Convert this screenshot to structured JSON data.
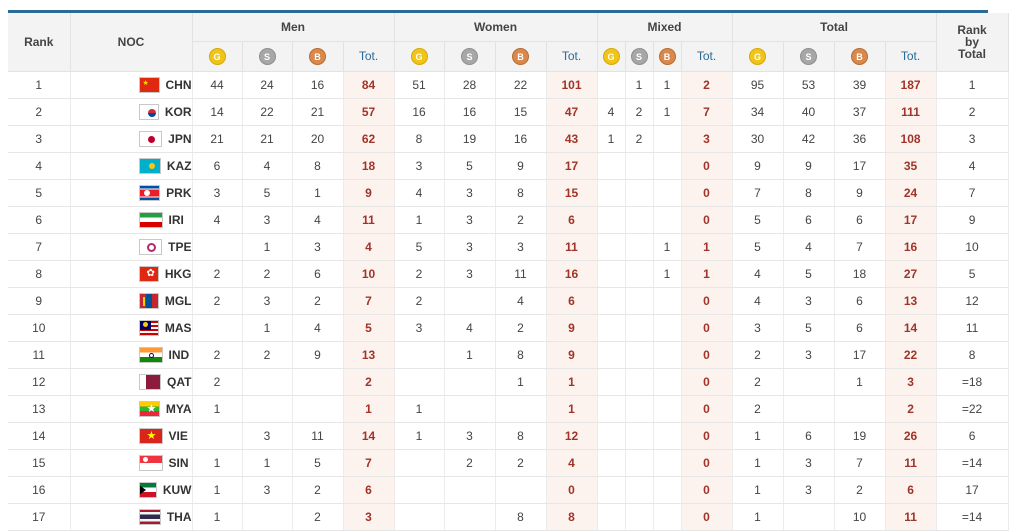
{
  "headers": {
    "rank": "Rank",
    "noc": "NOC",
    "men": "Men",
    "women": "Women",
    "mixed": "Mixed",
    "total": "Total",
    "rank_by_total": [
      "Rank",
      "by",
      "Total"
    ],
    "tot": "Tot.",
    "medal_gold": "G",
    "medal_silver": "S",
    "medal_bronze": "B"
  },
  "rows": [
    {
      "rank": "1",
      "noc": "CHN",
      "flag": "chn",
      "men": [
        "44",
        "24",
        "16",
        "84"
      ],
      "women": [
        "51",
        "28",
        "22",
        "101"
      ],
      "mixed": [
        "",
        "1",
        "1",
        "2"
      ],
      "total": [
        "95",
        "53",
        "39",
        "187"
      ],
      "rbt": "1"
    },
    {
      "rank": "2",
      "noc": "KOR",
      "flag": "kor",
      "men": [
        "14",
        "22",
        "21",
        "57"
      ],
      "women": [
        "16",
        "16",
        "15",
        "47"
      ],
      "mixed": [
        "4",
        "2",
        "1",
        "7"
      ],
      "total": [
        "34",
        "40",
        "37",
        "111"
      ],
      "rbt": "2"
    },
    {
      "rank": "3",
      "noc": "JPN",
      "flag": "jpn",
      "men": [
        "21",
        "21",
        "20",
        "62"
      ],
      "women": [
        "8",
        "19",
        "16",
        "43"
      ],
      "mixed": [
        "1",
        "2",
        "",
        "3"
      ],
      "total": [
        "30",
        "42",
        "36",
        "108"
      ],
      "rbt": "3"
    },
    {
      "rank": "4",
      "noc": "KAZ",
      "flag": "kaz",
      "men": [
        "6",
        "4",
        "8",
        "18"
      ],
      "women": [
        "3",
        "5",
        "9",
        "17"
      ],
      "mixed": [
        "",
        "",
        "",
        "0"
      ],
      "total": [
        "9",
        "9",
        "17",
        "35"
      ],
      "rbt": "4"
    },
    {
      "rank": "5",
      "noc": "PRK",
      "flag": "prk",
      "men": [
        "3",
        "5",
        "1",
        "9"
      ],
      "women": [
        "4",
        "3",
        "8",
        "15"
      ],
      "mixed": [
        "",
        "",
        "",
        "0"
      ],
      "total": [
        "7",
        "8",
        "9",
        "24"
      ],
      "rbt": "7"
    },
    {
      "rank": "6",
      "noc": "IRI",
      "flag": "iri",
      "men": [
        "4",
        "3",
        "4",
        "11"
      ],
      "women": [
        "1",
        "3",
        "2",
        "6"
      ],
      "mixed": [
        "",
        "",
        "",
        "0"
      ],
      "total": [
        "5",
        "6",
        "6",
        "17"
      ],
      "rbt": "9"
    },
    {
      "rank": "7",
      "noc": "TPE",
      "flag": "tpe",
      "men": [
        "",
        "1",
        "3",
        "4"
      ],
      "women": [
        "5",
        "3",
        "3",
        "11"
      ],
      "mixed": [
        "",
        "",
        "1",
        "1"
      ],
      "total": [
        "5",
        "4",
        "7",
        "16"
      ],
      "rbt": "10"
    },
    {
      "rank": "8",
      "noc": "HKG",
      "flag": "hkg",
      "men": [
        "2",
        "2",
        "6",
        "10"
      ],
      "women": [
        "2",
        "3",
        "11",
        "16"
      ],
      "mixed": [
        "",
        "",
        "1",
        "1"
      ],
      "total": [
        "4",
        "5",
        "18",
        "27"
      ],
      "rbt": "5"
    },
    {
      "rank": "9",
      "noc": "MGL",
      "flag": "mgl",
      "men": [
        "2",
        "3",
        "2",
        "7"
      ],
      "women": [
        "2",
        "",
        "4",
        "6"
      ],
      "mixed": [
        "",
        "",
        "",
        "0"
      ],
      "total": [
        "4",
        "3",
        "6",
        "13"
      ],
      "rbt": "12"
    },
    {
      "rank": "10",
      "noc": "MAS",
      "flag": "mas",
      "men": [
        "",
        "1",
        "4",
        "5"
      ],
      "women": [
        "3",
        "4",
        "2",
        "9"
      ],
      "mixed": [
        "",
        "",
        "",
        "0"
      ],
      "total": [
        "3",
        "5",
        "6",
        "14"
      ],
      "rbt": "11"
    },
    {
      "rank": "11",
      "noc": "IND",
      "flag": "ind",
      "men": [
        "2",
        "2",
        "9",
        "13"
      ],
      "women": [
        "",
        "1",
        "8",
        "9"
      ],
      "mixed": [
        "",
        "",
        "",
        "0"
      ],
      "total": [
        "2",
        "3",
        "17",
        "22"
      ],
      "rbt": "8"
    },
    {
      "rank": "12",
      "noc": "QAT",
      "flag": "qat",
      "men": [
        "2",
        "",
        "",
        "2"
      ],
      "women": [
        "",
        "",
        "1",
        "1"
      ],
      "mixed": [
        "",
        "",
        "",
        "0"
      ],
      "total": [
        "2",
        "",
        "1",
        "3"
      ],
      "rbt": "=18"
    },
    {
      "rank": "13",
      "noc": "MYA",
      "flag": "mya",
      "men": [
        "1",
        "",
        "",
        "1"
      ],
      "women": [
        "1",
        "",
        "",
        "1"
      ],
      "mixed": [
        "",
        "",
        "",
        "0"
      ],
      "total": [
        "2",
        "",
        "",
        "2"
      ],
      "rbt": "=22"
    },
    {
      "rank": "14",
      "noc": "VIE",
      "flag": "vie",
      "men": [
        "",
        "3",
        "11",
        "14"
      ],
      "women": [
        "1",
        "3",
        "8",
        "12"
      ],
      "mixed": [
        "",
        "",
        "",
        "0"
      ],
      "total": [
        "1",
        "6",
        "19",
        "26"
      ],
      "rbt": "6"
    },
    {
      "rank": "15",
      "noc": "SIN",
      "flag": "sin",
      "men": [
        "1",
        "1",
        "5",
        "7"
      ],
      "women": [
        "",
        "2",
        "2",
        "4"
      ],
      "mixed": [
        "",
        "",
        "",
        "0"
      ],
      "total": [
        "1",
        "3",
        "7",
        "11"
      ],
      "rbt": "=14"
    },
    {
      "rank": "16",
      "noc": "KUW",
      "flag": "kuw",
      "men": [
        "1",
        "3",
        "2",
        "6"
      ],
      "women": [
        "",
        "",
        "",
        "0"
      ],
      "mixed": [
        "",
        "",
        "",
        "0"
      ],
      "total": [
        "1",
        "3",
        "2",
        "6"
      ],
      "rbt": "17"
    },
    {
      "rank": "17",
      "noc": "THA",
      "flag": "tha",
      "men": [
        "1",
        "",
        "2",
        "3"
      ],
      "women": [
        "",
        "",
        "8",
        "8"
      ],
      "mixed": [
        "",
        "",
        "",
        "0"
      ],
      "total": [
        "1",
        "",
        "10",
        "11"
      ],
      "rbt": "=14"
    }
  ],
  "colors": {
    "accent": "#2a6a95",
    "total_cell_bg": "#fdf3ee",
    "total_cell_text": "#a0342a",
    "gold": "#f0c419",
    "silver": "#a7a7a7",
    "bronze": "#d9894d"
  }
}
